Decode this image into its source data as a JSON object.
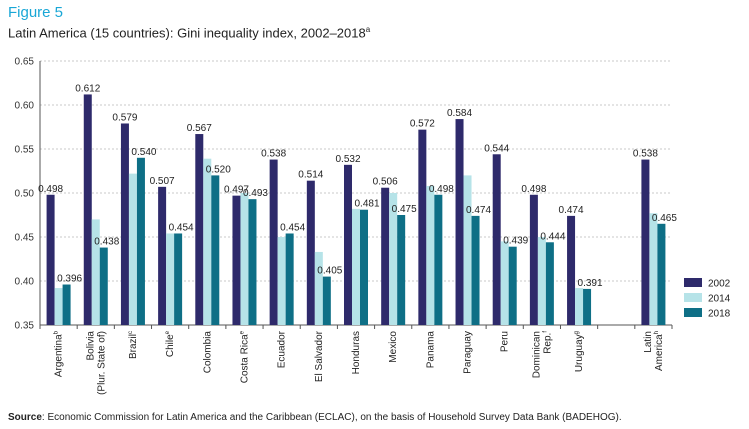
{
  "header": {
    "figure_label": "Figure 5",
    "title": "Latin America (15 countries): Gini inequality index, 2002–2018",
    "title_sup": "a"
  },
  "source": {
    "label": "Source",
    "text": ": Economic Commission for Latin America and the Caribbean (ECLAC), on the basis of Household Survey Data Bank (BADEHOG)."
  },
  "chart_data": {
    "type": "bar",
    "title": "Latin America (15 countries): Gini inequality index, 2002–2018",
    "ylim": [
      0.35,
      0.65
    ],
    "yticks": [
      "0.35",
      "0.40",
      "0.45",
      "0.50",
      "0.55",
      "0.60",
      "0.65"
    ],
    "grid": true,
    "legend_position": "right",
    "categories": [
      {
        "label": "Argentina",
        "sup": "b"
      },
      {
        "label": "Bolivia (Plur. State of)",
        "sup": ""
      },
      {
        "label": "Brazil",
        "sup": "c"
      },
      {
        "label": "Chile",
        "sup": "e"
      },
      {
        "label": "Colombia",
        "sup": ""
      },
      {
        "label": "Costa Rica",
        "sup": "e"
      },
      {
        "label": "Ecuador",
        "sup": ""
      },
      {
        "label": "El Salvador",
        "sup": ""
      },
      {
        "label": "Honduras",
        "sup": ""
      },
      {
        "label": "Mexico",
        "sup": ""
      },
      {
        "label": "Panama",
        "sup": ""
      },
      {
        "label": "Paraguay",
        "sup": ""
      },
      {
        "label": "Peru",
        "sup": ""
      },
      {
        "label": "Dominican Rep.",
        "sup": "f"
      },
      {
        "label": "Uruguay",
        "sup": "g"
      },
      {
        "label": "",
        "sup": ""
      },
      {
        "label": "Latin America",
        "sup": "h"
      }
    ],
    "series": [
      {
        "name": "2002",
        "color": "#2e2a6b",
        "values": [
          0.498,
          0.612,
          0.579,
          0.507,
          0.567,
          0.497,
          0.538,
          0.514,
          0.532,
          0.506,
          0.572,
          0.584,
          0.544,
          0.498,
          0.474,
          null,
          0.538
        ],
        "labels": [
          "0.498",
          "0.612",
          "0.579",
          "0.507",
          "0.567",
          "0.497",
          "0.538",
          "0.514",
          "0.532",
          "0.506",
          "0.572",
          "0.584",
          "0.544",
          "0.498",
          "0.474",
          "",
          "0.538"
        ]
      },
      {
        "name": "2014",
        "color": "#b6e3e8",
        "values": [
          0.392,
          0.47,
          0.522,
          0.454,
          0.539,
          0.5,
          0.45,
          0.433,
          0.482,
          0.5,
          0.508,
          0.52,
          0.445,
          0.45,
          0.392,
          null,
          0.477
        ],
        "labels": [
          "",
          "",
          "",
          "",
          "",
          "",
          "",
          "",
          "",
          "",
          "",
          "",
          "",
          "",
          "",
          "",
          ""
        ]
      },
      {
        "name": "2018",
        "color": "#0e6f86",
        "values": [
          0.396,
          0.438,
          0.54,
          0.454,
          0.52,
          0.493,
          0.454,
          0.405,
          0.481,
          0.475,
          0.498,
          0.474,
          0.439,
          0.444,
          0.391,
          null,
          0.465
        ],
        "labels": [
          "0.396",
          "0.438",
          "0.540",
          "0.454",
          "0.520",
          "0.493",
          "0.454",
          "0.405",
          "0.481",
          "0.475",
          "0.498",
          "0.474",
          "0.439",
          "0.444",
          "0.391",
          "",
          "0.465"
        ]
      }
    ]
  }
}
